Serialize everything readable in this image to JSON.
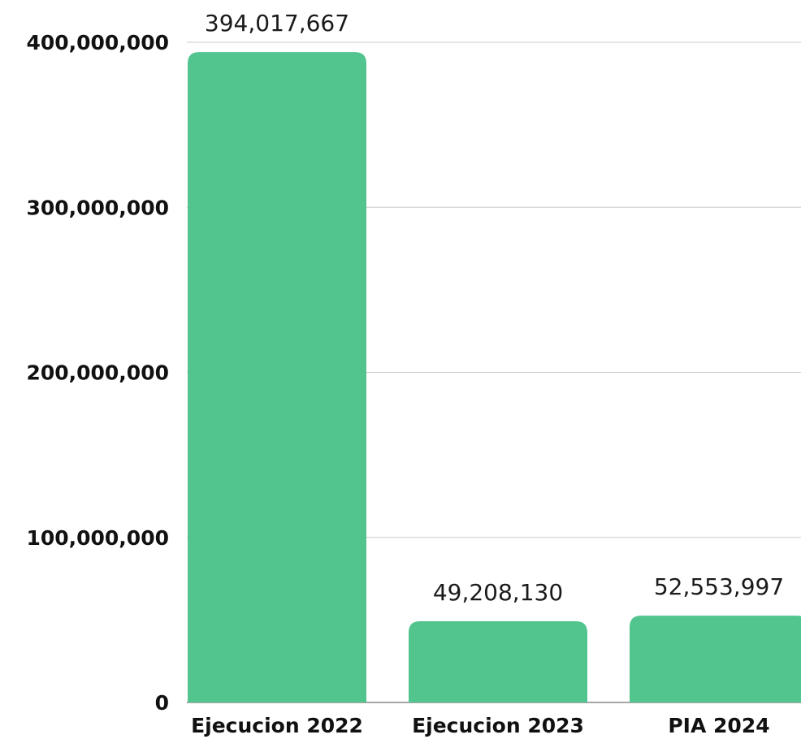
{
  "chart_data": {
    "type": "bar",
    "categories": [
      "Ejecucion 2022",
      "Ejecucion 2023",
      "PIA 2024"
    ],
    "values": [
      394017667,
      49208130,
      52553997
    ],
    "data_labels": [
      "394,017,667",
      "49,208,130",
      "52,553,997"
    ],
    "y_ticks": [
      0,
      100000000,
      200000000,
      300000000,
      400000000
    ],
    "y_tick_labels": [
      "0",
      "100,000,000",
      "200,000,000",
      "300,000,000",
      "400,000,000"
    ],
    "ylim": [
      0,
      400000000
    ],
    "title": "",
    "xlabel": "",
    "ylabel": "",
    "grid": true,
    "legend": "none",
    "bar_color": "#52c58e"
  }
}
